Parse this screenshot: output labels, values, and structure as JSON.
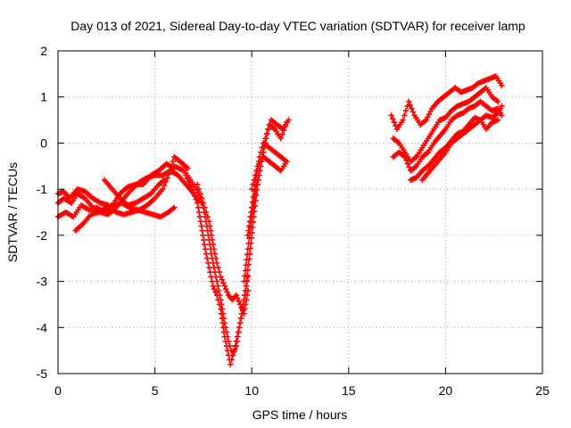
{
  "chart_data": {
    "type": "scatter",
    "title": "Day 013 of 2021, Sidereal Day-to-day VTEC variation (SDTVAR) for receiver lamp",
    "xlabel": "GPS time / hours",
    "ylabel": "SDTVAR / TECUs",
    "xlim": [
      0,
      25
    ],
    "ylim": [
      -5,
      2
    ],
    "xticks": [
      "0",
      "5",
      "10",
      "15",
      "20",
      "25"
    ],
    "yticks": [
      "2",
      "1",
      "0",
      "-1",
      "-2",
      "-3",
      "-4",
      "-5"
    ],
    "xtick_values": [
      0,
      5,
      10,
      15,
      20,
      25
    ],
    "ytick_values": [
      2,
      1,
      0,
      -1,
      -2,
      -3,
      -4,
      -5
    ],
    "grid": true,
    "marker": "plus",
    "color": "#ff0000",
    "tracks": [
      [
        [
          0.0,
          -1.6
        ],
        [
          0.4,
          -1.5
        ],
        [
          0.8,
          -1.6
        ],
        [
          1.2,
          -1.35
        ],
        [
          1.6,
          -1.45
        ],
        [
          2.0,
          -1.4
        ],
        [
          2.4,
          -1.5
        ],
        [
          2.8,
          -1.35
        ],
        [
          3.2,
          -1.1
        ],
        [
          3.6,
          -0.95
        ],
        [
          4.0,
          -0.9
        ],
        [
          4.4,
          -0.9
        ],
        [
          4.8,
          -0.7
        ],
        [
          5.2,
          -0.6
        ],
        [
          5.6,
          -0.45
        ],
        [
          6.0,
          -0.55
        ]
      ],
      [
        [
          0.0,
          -1.3
        ],
        [
          0.3,
          -1.2
        ],
        [
          0.7,
          -1.3
        ],
        [
          1.0,
          -1.1
        ],
        [
          1.4,
          -1.2
        ],
        [
          1.8,
          -1.4
        ],
        [
          2.2,
          -1.5
        ],
        [
          2.6,
          -1.55
        ],
        [
          3.0,
          -1.4
        ],
        [
          3.4,
          -1.2
        ],
        [
          3.8,
          -1.0
        ],
        [
          4.2,
          -0.85
        ],
        [
          4.6,
          -0.75
        ],
        [
          5.0,
          -0.7
        ],
        [
          5.4,
          -0.7
        ],
        [
          5.8,
          -0.6
        ],
        [
          6.2,
          -0.7
        ],
        [
          6.6,
          -0.9
        ],
        [
          7.0,
          -1.1
        ],
        [
          7.4,
          -1.3
        ]
      ],
      [
        [
          0.0,
          -1.1
        ],
        [
          0.3,
          -1.05
        ],
        [
          0.6,
          -1.2
        ],
        [
          1.0,
          -1.0
        ],
        [
          1.4,
          -1.05
        ],
        [
          1.8,
          -1.2
        ],
        [
          2.2,
          -1.3
        ],
        [
          2.6,
          -1.35
        ],
        [
          3.0,
          -1.5
        ],
        [
          3.4,
          -1.55
        ],
        [
          3.8,
          -1.5
        ],
        [
          4.2,
          -1.45
        ],
        [
          4.6,
          -1.35
        ],
        [
          5.0,
          -1.2
        ],
        [
          5.4,
          -1.0
        ],
        [
          5.8,
          -0.6
        ],
        [
          6.0,
          -0.3
        ],
        [
          6.3,
          -0.4
        ],
        [
          6.7,
          -0.55
        ]
      ],
      [
        [
          0.9,
          -1.9
        ],
        [
          1.3,
          -1.75
        ],
        [
          1.7,
          -1.55
        ],
        [
          2.1,
          -1.5
        ],
        [
          2.5,
          -1.4
        ],
        [
          2.9,
          -1.35
        ],
        [
          3.3,
          -1.3
        ],
        [
          3.7,
          -1.4
        ],
        [
          4.1,
          -1.45
        ],
        [
          4.5,
          -1.5
        ],
        [
          4.9,
          -1.55
        ],
        [
          5.3,
          -1.6
        ],
        [
          5.7,
          -1.5
        ],
        [
          6.0,
          -1.4
        ]
      ],
      [
        [
          2.4,
          -0.8
        ],
        [
          2.8,
          -1.0
        ],
        [
          3.2,
          -1.2
        ],
        [
          3.6,
          -1.35
        ],
        [
          4.0,
          -1.3
        ],
        [
          4.4,
          -1.2
        ],
        [
          4.8,
          -1.1
        ],
        [
          5.2,
          -0.9
        ],
        [
          5.5,
          -0.8
        ]
      ],
      [
        [
          6.0,
          -0.5
        ],
        [
          6.5,
          -0.6
        ],
        [
          7.0,
          -0.9
        ],
        [
          7.4,
          -1.2
        ],
        [
          7.6,
          -1.6
        ],
        [
          7.8,
          -2.1
        ],
        [
          8.0,
          -2.6
        ],
        [
          8.2,
          -3.0
        ],
        [
          8.4,
          -3.4
        ],
        [
          8.6,
          -3.9
        ],
        [
          8.8,
          -4.3
        ],
        [
          9.0,
          -4.6
        ],
        [
          9.2,
          -4.4
        ],
        [
          9.4,
          -3.9
        ],
        [
          9.6,
          -3.4
        ],
        [
          9.8,
          -2.9
        ]
      ],
      [
        [
          6.6,
          -0.7
        ],
        [
          6.9,
          -1.0
        ],
        [
          7.2,
          -1.3
        ],
        [
          7.4,
          -1.8
        ],
        [
          7.6,
          -2.3
        ],
        [
          7.8,
          -2.7
        ],
        [
          8.0,
          -3.1
        ],
        [
          8.2,
          -3.3
        ],
        [
          8.4,
          -3.6
        ],
        [
          8.6,
          -4.2
        ],
        [
          8.8,
          -4.6
        ],
        [
          8.9,
          -4.8
        ],
        [
          9.1,
          -4.5
        ],
        [
          9.3,
          -4.1
        ],
        [
          9.5,
          -3.7
        ],
        [
          9.7,
          -3.1
        ],
        [
          9.9,
          -2.4
        ],
        [
          10.1,
          -1.6
        ],
        [
          10.3,
          -0.9
        ],
        [
          10.5,
          -0.4
        ],
        [
          10.7,
          0.1
        ],
        [
          10.9,
          0.4
        ],
        [
          11.2,
          0.3
        ],
        [
          11.5,
          0.1
        ],
        [
          11.8,
          0.45
        ]
      ],
      [
        [
          7.2,
          -0.9
        ],
        [
          7.5,
          -1.3
        ],
        [
          7.8,
          -1.7
        ],
        [
          8.0,
          -2.2
        ],
        [
          8.2,
          -2.6
        ],
        [
          8.4,
          -2.9
        ],
        [
          8.6,
          -3.1
        ],
        [
          8.8,
          -3.3
        ],
        [
          9.0,
          -3.4
        ],
        [
          9.2,
          -3.3
        ],
        [
          9.4,
          -3.5
        ],
        [
          9.6,
          -3.7
        ],
        [
          9.8,
          -3.2
        ]
      ],
      [
        [
          9.6,
          -3.0
        ],
        [
          9.8,
          -2.3
        ],
        [
          10.0,
          -1.6
        ],
        [
          10.2,
          -1.0
        ],
        [
          10.4,
          -0.6
        ],
        [
          10.6,
          -0.2
        ],
        [
          10.8,
          0.2
        ],
        [
          11.0,
          0.5
        ],
        [
          11.3,
          0.4
        ],
        [
          11.6,
          0.3
        ],
        [
          11.9,
          0.5
        ]
      ],
      [
        [
          9.8,
          -2.0
        ],
        [
          10.0,
          -1.4
        ],
        [
          10.2,
          -0.8
        ],
        [
          10.4,
          -0.3
        ],
        [
          10.6,
          0.0
        ],
        [
          10.9,
          -0.1
        ],
        [
          11.2,
          -0.2
        ],
        [
          11.5,
          -0.3
        ],
        [
          11.8,
          -0.4
        ]
      ],
      [
        [
          10.0,
          -1.0
        ],
        [
          10.3,
          -0.5
        ],
        [
          10.6,
          -0.3
        ],
        [
          10.9,
          -0.4
        ],
        [
          11.2,
          -0.5
        ],
        [
          11.5,
          -0.6
        ],
        [
          11.8,
          -0.4
        ]
      ],
      [
        [
          17.2,
          0.6
        ],
        [
          17.5,
          0.3
        ],
        [
          17.8,
          0.5
        ],
        [
          18.1,
          0.9
        ],
        [
          18.4,
          0.6
        ],
        [
          18.7,
          0.4
        ],
        [
          19.0,
          0.5
        ],
        [
          19.3,
          0.75
        ],
        [
          19.6,
          0.9
        ],
        [
          19.9,
          1.0
        ],
        [
          20.2,
          1.1
        ],
        [
          20.5,
          1.2
        ],
        [
          20.8,
          1.1
        ],
        [
          21.1,
          1.15
        ],
        [
          21.4,
          1.2
        ],
        [
          21.7,
          1.3
        ],
        [
          22.0,
          1.35
        ],
        [
          22.3,
          1.4
        ],
        [
          22.6,
          1.45
        ],
        [
          22.9,
          1.25
        ]
      ],
      [
        [
          17.3,
          0.1
        ],
        [
          17.6,
          0.0
        ],
        [
          17.9,
          -0.2
        ],
        [
          18.2,
          -0.4
        ],
        [
          18.5,
          -0.3
        ],
        [
          18.8,
          -0.1
        ],
        [
          19.1,
          0.1
        ],
        [
          19.4,
          0.3
        ],
        [
          19.7,
          0.5
        ],
        [
          20.0,
          0.55
        ],
        [
          20.3,
          0.7
        ],
        [
          20.6,
          0.8
        ],
        [
          20.9,
          0.85
        ],
        [
          21.2,
          0.9
        ],
        [
          21.5,
          1.0
        ],
        [
          21.8,
          1.1
        ],
        [
          22.1,
          1.2
        ],
        [
          22.4,
          1.0
        ],
        [
          22.7,
          0.9
        ]
      ],
      [
        [
          17.3,
          -0.3
        ],
        [
          17.6,
          -0.2
        ],
        [
          17.9,
          -0.3
        ],
        [
          18.2,
          -0.6
        ],
        [
          18.5,
          -0.5
        ],
        [
          18.8,
          -0.3
        ],
        [
          19.1,
          -0.2
        ],
        [
          19.4,
          0.0
        ],
        [
          19.7,
          0.15
        ],
        [
          20.0,
          0.3
        ],
        [
          20.3,
          0.5
        ],
        [
          20.6,
          0.6
        ],
        [
          20.9,
          0.65
        ],
        [
          21.2,
          0.75
        ],
        [
          21.5,
          0.8
        ],
        [
          21.8,
          0.9
        ],
        [
          22.1,
          0.8
        ],
        [
          22.4,
          0.7
        ],
        [
          22.7,
          0.75
        ],
        [
          22.9,
          0.6
        ]
      ],
      [
        [
          18.2,
          -0.8
        ],
        [
          18.5,
          -0.75
        ],
        [
          18.8,
          -0.6
        ],
        [
          19.1,
          -0.5
        ],
        [
          19.4,
          -0.35
        ],
        [
          19.7,
          -0.2
        ],
        [
          20.0,
          -0.1
        ],
        [
          20.3,
          0.05
        ],
        [
          20.6,
          0.2
        ],
        [
          20.9,
          0.25
        ],
        [
          21.2,
          0.4
        ],
        [
          21.5,
          0.55
        ],
        [
          21.8,
          0.5
        ],
        [
          22.1,
          0.3
        ],
        [
          22.4,
          0.45
        ],
        [
          22.7,
          0.5
        ]
      ],
      [
        [
          18.8,
          -0.8
        ],
        [
          19.1,
          -0.65
        ],
        [
          19.4,
          -0.5
        ],
        [
          19.7,
          -0.35
        ],
        [
          20.0,
          -0.2
        ],
        [
          20.3,
          0.0
        ],
        [
          20.6,
          0.1
        ],
        [
          20.9,
          0.2
        ],
        [
          21.2,
          0.3
        ],
        [
          21.5,
          0.4
        ],
        [
          21.8,
          0.5
        ],
        [
          22.1,
          0.6
        ],
        [
          22.4,
          0.55
        ],
        [
          22.7,
          0.65
        ],
        [
          22.9,
          0.8
        ]
      ]
    ]
  }
}
